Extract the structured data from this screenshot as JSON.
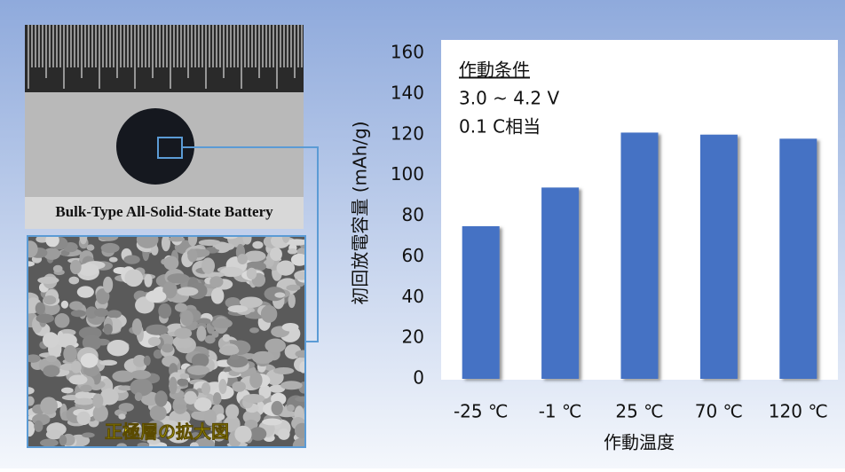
{
  "chart_data": {
    "type": "bar",
    "y_axis_label": "初回放電容量 (mAh/g)",
    "x_axis_label": "作動温度",
    "categories": [
      "-25 ℃",
      "-1 ℃",
      "25 ℃",
      "70 ℃",
      "120 ℃"
    ],
    "values": [
      75,
      94,
      121,
      120,
      118
    ],
    "color": "#4472c4",
    "ylim": [
      0,
      160
    ],
    "yticks": [
      0,
      20,
      40,
      60,
      80,
      100,
      120,
      140,
      160
    ],
    "annotations": [
      "作動条件",
      "3.0 ~ 4.2 V",
      "0.1 C相当"
    ]
  },
  "photos": {
    "battery_caption": "Bulk-Type All-Solid-State Battery",
    "micrograph_caption": "正極層の拡大図"
  }
}
